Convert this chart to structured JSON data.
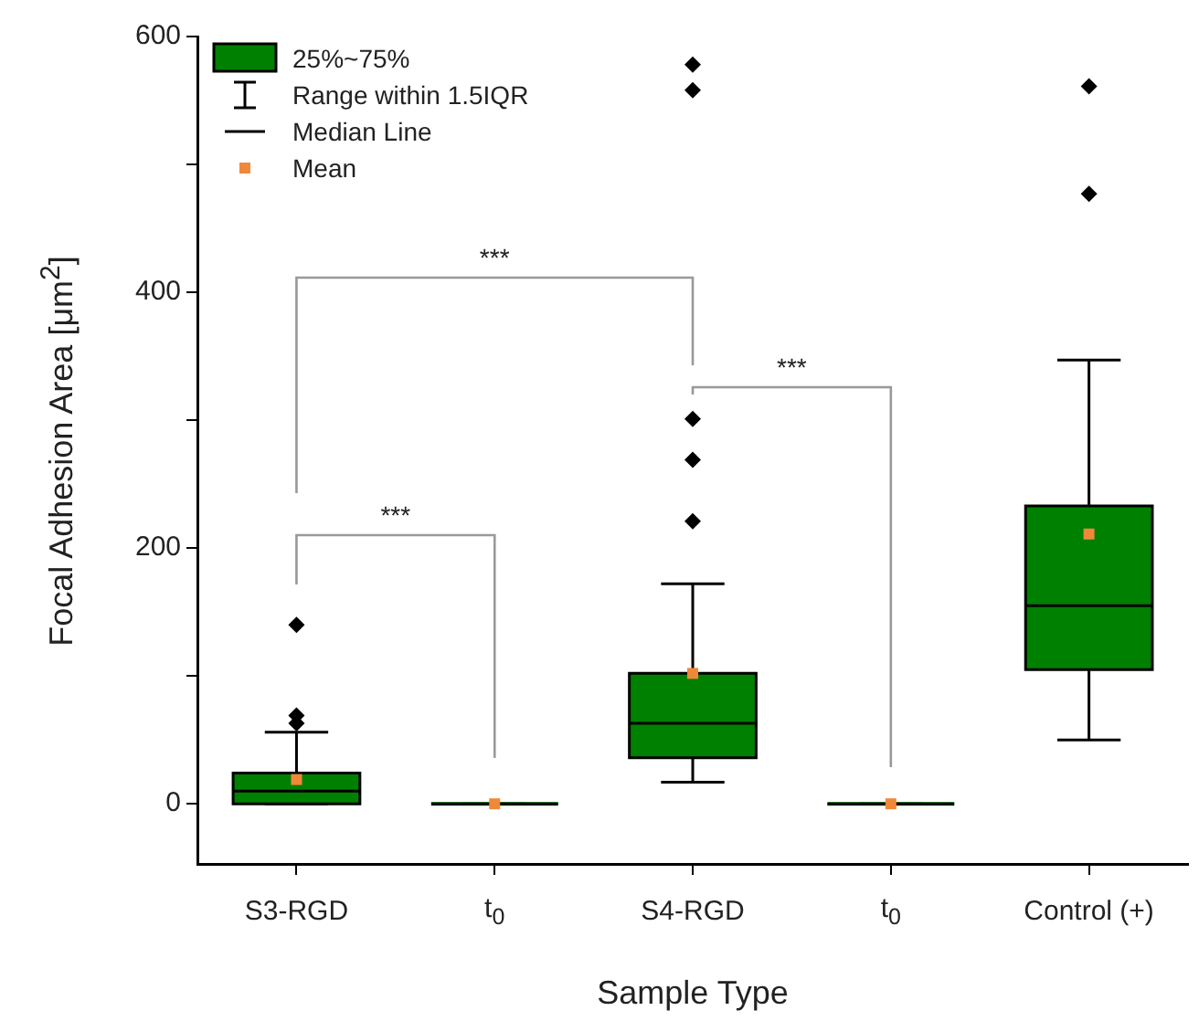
{
  "chart_data": {
    "type": "box",
    "xlabel": "Sample Type",
    "ylabel": "Focal Adhesion Area [μm$^{2}$]",
    "categories": [
      "S3-RGD",
      "t$_{0}$",
      "S4-RGD",
      "t$_{0}$",
      "Control (+)"
    ],
    "series": [
      {
        "color": "#008000",
        "boxes": [
          {
            "low": 0,
            "q1": 0,
            "median": 10,
            "q3": 24,
            "high": 56,
            "mean": 19,
            "outliers": [
              140,
              69,
              63
            ]
          },
          {
            "low": 0,
            "q1": 0,
            "median": 0,
            "q3": 0,
            "high": 0,
            "mean": 0
          },
          {
            "low": 17,
            "q1": 36,
            "median": 63,
            "q3": 102,
            "high": 172,
            "mean": 102,
            "outliers": [
              221,
              269,
              301,
              558,
              578
            ]
          },
          {
            "low": 0,
            "q1": 0,
            "median": 0,
            "q3": 0,
            "high": 0,
            "mean": 0
          },
          {
            "low": 50,
            "q1": 105,
            "median": 155,
            "q3": 233,
            "high": 347,
            "mean": 211,
            "outliers": [
              477,
              561
            ]
          }
        ]
      }
    ],
    "ylim": [
      -47,
      600
    ],
    "yticks": [
      0,
      {
        "value": 100,
        "label": null
      },
      200,
      {
        "value": 300,
        "label": null
      },
      400,
      {
        "value": 500,
        "label": null
      },
      600
    ],
    "marker": "diamond",
    "annotations": [
      "25%~75%",
      "Range within 1.5IQR",
      "Median Line",
      "Mean",
      "***",
      "***",
      "***"
    ]
  }
}
